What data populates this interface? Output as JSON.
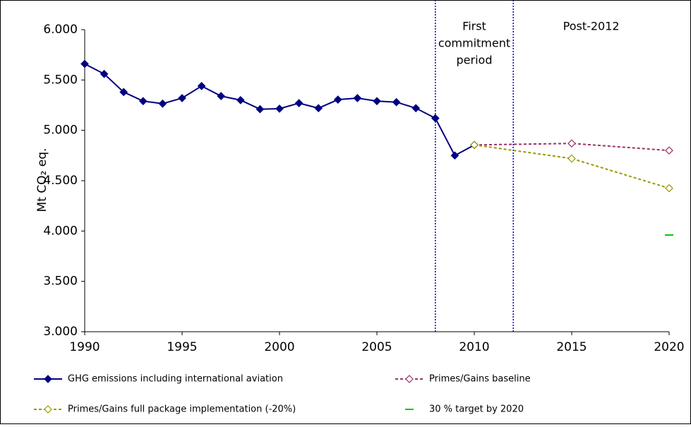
{
  "chart_data": {
    "type": "line",
    "ylabel": "Mt CO₂ eq.",
    "xlim": [
      1990,
      2020
    ],
    "xticks": [
      1990,
      1995,
      2000,
      2005,
      2010,
      2015,
      2020
    ],
    "ylim": [
      3000,
      6000
    ],
    "yticks": [
      {
        "value": 3000,
        "label": "3.000"
      },
      {
        "value": 3500,
        "label": "3.500"
      },
      {
        "value": 4000,
        "label": "4.000"
      },
      {
        "value": 4500,
        "label": "4.500"
      },
      {
        "value": 5000,
        "label": "5.000"
      },
      {
        "value": 5500,
        "label": "5.500"
      },
      {
        "value": 6000,
        "label": "6.000"
      }
    ],
    "vlines": [
      2008,
      2012
    ],
    "vline_color": "#0000cc",
    "annotations": [
      {
        "lines": [
          "First",
          "commitment",
          "period"
        ],
        "x": 2010
      },
      {
        "lines": [
          "Post-2012"
        ],
        "x": 2016
      }
    ],
    "series": [
      {
        "name": "GHG emissions including international aviation",
        "color": "#000080",
        "style": "solid",
        "marker": "diamond-filled",
        "x": [
          1990,
          1991,
          1992,
          1993,
          1994,
          1995,
          1996,
          1997,
          1998,
          1999,
          2000,
          2001,
          2002,
          2003,
          2004,
          2005,
          2006,
          2007,
          2008,
          2009,
          2010
        ],
        "values": [
          5660,
          5560,
          5380,
          5290,
          5265,
          5320,
          5440,
          5340,
          5300,
          5210,
          5215,
          5270,
          5220,
          5305,
          5320,
          5290,
          5280,
          5220,
          5120,
          4750,
          4855
        ]
      },
      {
        "name": "Primes/Gains baseline",
        "color": "#993366",
        "style": "dashed",
        "marker": "diamond-open",
        "x": [
          2010,
          2015,
          2020
        ],
        "values": [
          4855,
          4870,
          4800
        ]
      },
      {
        "name": "Primes/Gains full package implementation (-20%)",
        "color": "#999900",
        "style": "dashed",
        "marker": "diamond-open",
        "x": [
          2010,
          2015,
          2020
        ],
        "values": [
          4855,
          4720,
          4425
        ]
      },
      {
        "name": "30 % target by 2020",
        "color": "#00cc00",
        "style": "none",
        "marker": "dash",
        "x": [
          2020
        ],
        "values": [
          3960
        ]
      }
    ]
  }
}
